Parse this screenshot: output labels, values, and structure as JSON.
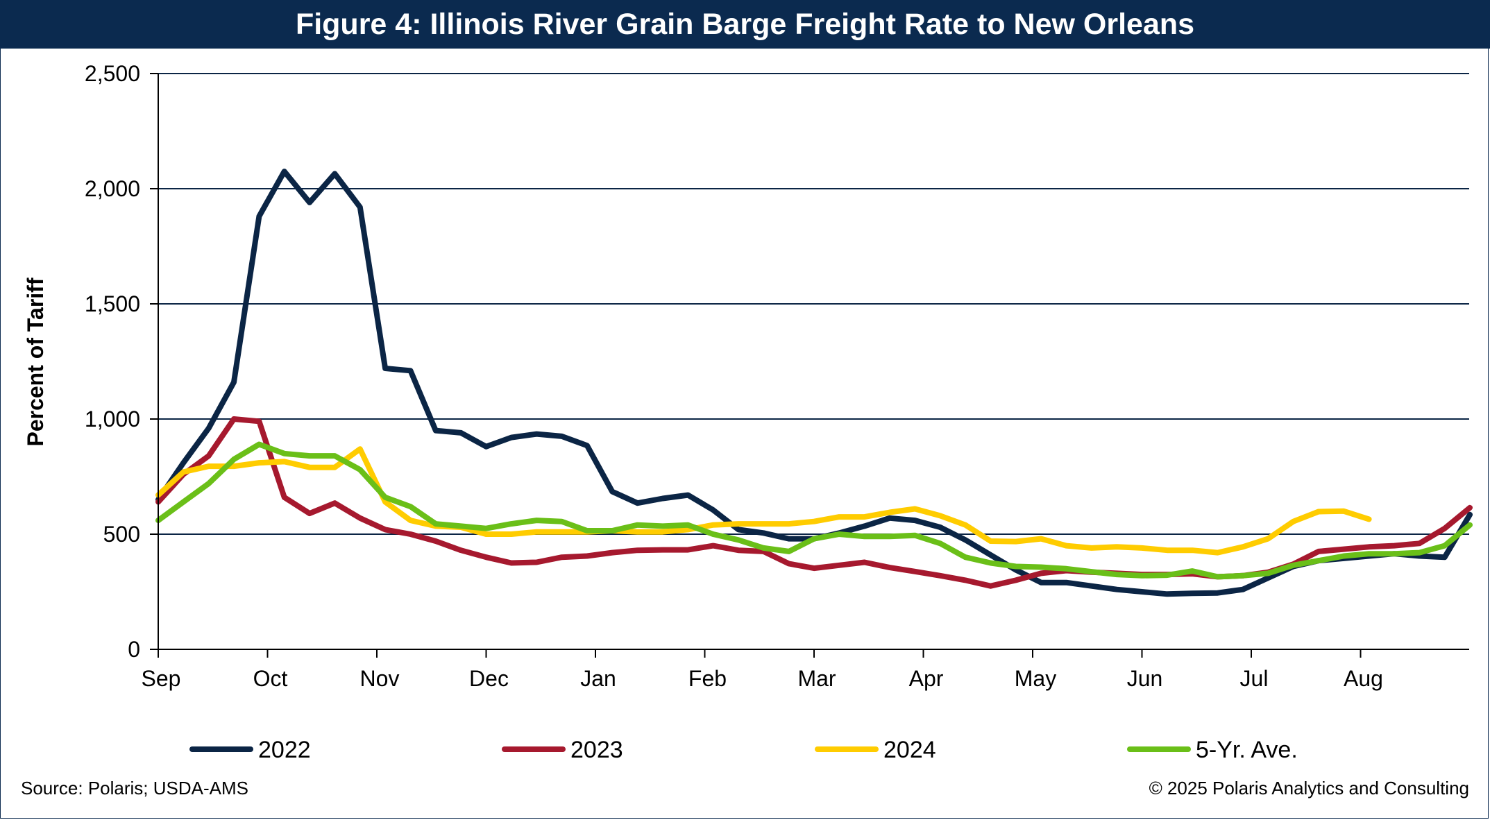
{
  "chart_data": {
    "type": "line",
    "title": "Figure 4: Illinois River Grain Barge Freight Rate to New Orleans",
    "ylabel": "Percent of Tariff",
    "xlabel": "",
    "ylim": [
      0,
      2500
    ],
    "yticks": [
      0,
      500,
      1000,
      1500,
      2000,
      2500
    ],
    "ytick_labels": [
      "0",
      "500",
      "1,000",
      "1,500",
      "2,000",
      "2,500"
    ],
    "xticks": [
      "Sep",
      "Oct",
      "Nov",
      "Dec",
      "Jan",
      "Feb",
      "Mar",
      "Apr",
      "May",
      "Jun",
      "Jul",
      "Aug"
    ],
    "x_unit": "weeks from start of September",
    "grid": "horizontal",
    "legend_position": "bottom",
    "series": [
      {
        "name": "2022",
        "color": "#0b2545",
        "values": [
          650,
          810,
          960,
          1160,
          1880,
          2075,
          1940,
          2065,
          1920,
          1220,
          1210,
          950,
          940,
          880,
          920,
          935,
          925,
          885,
          685,
          635,
          655,
          670,
          605,
          520,
          505,
          480,
          480,
          505,
          535,
          570,
          560,
          530,
          475,
          410,
          345,
          290,
          290,
          275,
          260,
          250,
          240,
          243,
          245,
          260,
          310,
          360,
          385,
          395,
          405,
          415,
          405,
          400,
          585
        ]
      },
      {
        "name": "2023",
        "color": "#a6192e",
        "values": [
          640,
          760,
          840,
          1000,
          990,
          660,
          590,
          635,
          570,
          520,
          500,
          470,
          430,
          400,
          375,
          378,
          400,
          405,
          420,
          430,
          432,
          432,
          450,
          430,
          425,
          372,
          352,
          365,
          378,
          355,
          338,
          320,
          300,
          275,
          300,
          330,
          342,
          335,
          330,
          325,
          325,
          328,
          315,
          320,
          335,
          370,
          425,
          435,
          445,
          450,
          460,
          525,
          615
        ]
      },
      {
        "name": "2024",
        "color": "#ffcc00",
        "values": [
          670,
          770,
          795,
          795,
          810,
          815,
          790,
          790,
          870,
          640,
          560,
          535,
          530,
          500,
          500,
          510,
          510,
          510,
          515,
          510,
          510,
          520,
          540,
          545,
          545,
          545,
          555,
          575,
          575,
          595,
          610,
          580,
          540,
          470,
          468,
          480,
          450,
          440,
          445,
          440,
          430,
          430,
          420,
          445,
          480,
          555,
          598,
          600,
          565
        ]
      },
      {
        "name": "5-Yr. Ave.",
        "color": "#6abf18",
        "values": [
          560,
          640,
          720,
          825,
          890,
          850,
          840,
          840,
          780,
          660,
          620,
          545,
          535,
          525,
          545,
          560,
          555,
          515,
          515,
          540,
          535,
          540,
          500,
          475,
          440,
          425,
          480,
          500,
          490,
          490,
          495,
          460,
          400,
          375,
          360,
          357,
          350,
          337,
          325,
          320,
          322,
          340,
          315,
          320,
          330,
          365,
          385,
          405,
          415,
          415,
          420,
          450,
          540
        ]
      }
    ]
  },
  "footer": {
    "source": "Source: Polaris; USDA-AMS",
    "copyright": "© 2025 Polaris Analytics and Consulting"
  }
}
